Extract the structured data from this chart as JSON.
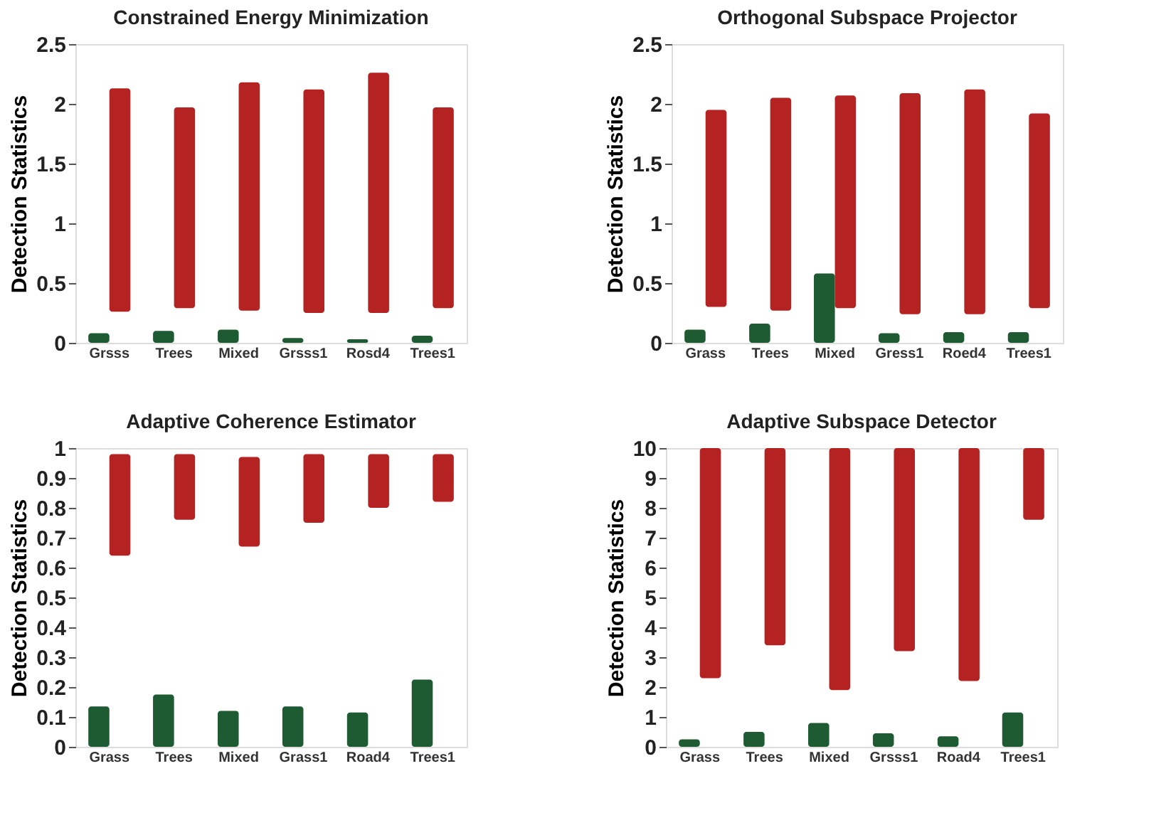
{
  "chart_data": [
    {
      "type": "bar",
      "title": "Constrained Energy Minimization",
      "ylabel": "Detection Statistics",
      "categories": [
        "Grsss",
        "Trees",
        "Mixed",
        "Grsss1",
        "Rosd4",
        "Trees1"
      ],
      "ylim": [
        0,
        2.5
      ],
      "yticks": [
        0,
        0.5,
        1,
        1.5,
        2,
        2.5
      ],
      "grid": false,
      "series": [
        {
          "color": "#1e5a32",
          "values": [
            0.08,
            0.1,
            0.11,
            0.04,
            0.03,
            0.06
          ]
        },
        {
          "color": "#b52222",
          "base": [
            0.26,
            0.29,
            0.27,
            0.25,
            0.25,
            0.29
          ],
          "values": [
            1.87,
            1.68,
            1.91,
            1.87,
            2.01,
            1.68
          ]
        }
      ]
    },
    {
      "type": "bar",
      "title": "Orthogonal Subspace Projector",
      "ylabel": "Detection Statistics",
      "categories": [
        "Grass",
        "Trees",
        "Mixed",
        "Gress1",
        "Roed4",
        "Trees1"
      ],
      "ylim": [
        0,
        2.5
      ],
      "yticks": [
        0,
        0.5,
        1,
        1.5,
        2,
        2.5
      ],
      "grid": false,
      "series": [
        {
          "color": "#1e5a32",
          "values": [
            0.11,
            0.16,
            0.58,
            0.08,
            0.09,
            0.09
          ]
        },
        {
          "color": "#b52222",
          "base": [
            0.3,
            0.27,
            0.29,
            0.24,
            0.24,
            0.29
          ],
          "values": [
            1.65,
            1.78,
            1.78,
            1.85,
            1.88,
            1.63
          ]
        }
      ]
    },
    {
      "type": "bar",
      "title": "Adaptive Coherence Estimator",
      "ylabel": "Detection Statistics",
      "categories": [
        "Grass",
        "Trees",
        "Mixed",
        "Grass1",
        "Road4",
        "Trees1"
      ],
      "ylim": [
        0,
        1
      ],
      "yticks": [
        0,
        0.1,
        0.2,
        0.3,
        0.4,
        0.5,
        0.6,
        0.7,
        0.8,
        0.9,
        1
      ],
      "grid": false,
      "series": [
        {
          "color": "#1e5a32",
          "values": [
            0.135,
            0.175,
            0.12,
            0.135,
            0.115,
            0.225
          ]
        },
        {
          "color": "#b52222",
          "base": [
            0.64,
            0.76,
            0.67,
            0.75,
            0.8,
            0.82
          ],
          "values": [
            0.34,
            0.22,
            0.3,
            0.23,
            0.18,
            0.16
          ]
        }
      ]
    },
    {
      "type": "bar",
      "title": "Adaptive Subspace Detector",
      "ylabel": "Detection Statistics",
      "categories": [
        "Grass",
        "Trees",
        "Mixed",
        "Grsss1",
        "Road4",
        "Trees1"
      ],
      "ylim": [
        0,
        10
      ],
      "yticks": [
        0,
        1,
        2,
        3,
        4,
        5,
        6,
        7,
        8,
        9,
        10
      ],
      "grid": false,
      "series": [
        {
          "color": "#1e5a32",
          "values": [
            0.25,
            0.5,
            0.8,
            0.45,
            0.35,
            1.15
          ]
        },
        {
          "color": "#b52222",
          "base": [
            2.3,
            3.4,
            1.9,
            3.2,
            2.2,
            7.6
          ],
          "values": [
            7.7,
            6.6,
            8.1,
            6.8,
            7.8,
            2.4
          ]
        }
      ]
    }
  ]
}
